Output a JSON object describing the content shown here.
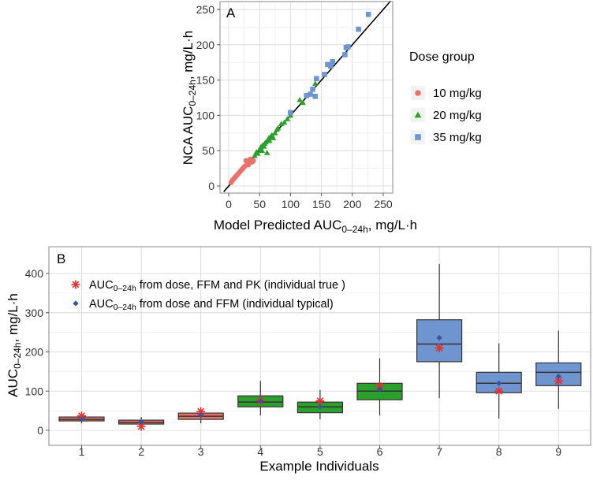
{
  "chart_data": [
    {
      "type": "scatter",
      "panel_label": "A",
      "xlabel_main": "Model Predicted AUC",
      "xlabel_sub": "0–24h",
      "xlabel_unit": ", mg/L·h",
      "ylabel_main": "NCA AUC",
      "ylabel_sub": "0–24h",
      "ylabel_unit": ", mg/L·h",
      "xlim": [
        0,
        250
      ],
      "ylim": [
        0,
        250
      ],
      "xticks": [
        0,
        50,
        100,
        150,
        200,
        250
      ],
      "yticks": [
        0,
        50,
        100,
        150,
        200,
        250
      ],
      "grid": true,
      "identity_line": true,
      "legend_title": "Dose group",
      "legend_position": "right",
      "series": [
        {
          "name": "10 mg/kg",
          "marker": "circle",
          "color": "#e8736b",
          "x": [
            4,
            6,
            8,
            10,
            12,
            14,
            16,
            18,
            20,
            22,
            24,
            26,
            28,
            30,
            32,
            35,
            38,
            40
          ],
          "y": [
            5,
            8,
            10,
            12,
            14,
            16,
            18,
            20,
            22,
            24,
            26,
            28,
            36,
            33,
            30,
            38,
            34,
            36
          ]
        },
        {
          "name": "20 mg/kg",
          "marker": "triangle",
          "color": "#2ca02c",
          "x": [
            42,
            45,
            47,
            50,
            52,
            54,
            55,
            57,
            58,
            60,
            62,
            63,
            65,
            66,
            68,
            70,
            72,
            75,
            78,
            80,
            85,
            90,
            95,
            100,
            115,
            120,
            140
          ],
          "y": [
            43,
            48,
            46,
            52,
            55,
            50,
            58,
            56,
            60,
            62,
            47,
            65,
            68,
            64,
            70,
            72,
            68,
            75,
            80,
            82,
            88,
            90,
            95,
            100,
            122,
            118,
            145
          ]
        },
        {
          "name": "35 mg/kg",
          "marker": "square",
          "color": "#6f95d0",
          "x": [
            100,
            126,
            132,
            136,
            140,
            142,
            155,
            160,
            165,
            168,
            188,
            190,
            193,
            210,
            226
          ],
          "y": [
            104,
            128,
            130,
            137,
            127,
            152,
            158,
            172,
            170,
            176,
            186,
            196,
            197,
            222,
            243
          ]
        }
      ]
    },
    {
      "type": "box",
      "panel_label": "B",
      "xlabel": "Example Individuals",
      "ylabel_main": "AUC",
      "ylabel_sub": "0–24h",
      "ylabel_unit": ", mg/L·h",
      "ylim": [
        0,
        440
      ],
      "yticks": [
        0,
        100,
        200,
        300,
        400
      ],
      "grid": true,
      "legend_position": "top-left",
      "categories": [
        "1",
        "2",
        "3",
        "4",
        "5",
        "6",
        "7",
        "8",
        "9"
      ],
      "box_colors": [
        "#e8736b",
        "#e8736b",
        "#e8736b",
        "#2ca02c",
        "#2ca02c",
        "#2ca02c",
        "#6f95d0",
        "#6f95d0",
        "#6f95d0"
      ],
      "boxes": [
        {
          "min": 18,
          "q1": 24,
          "median": 28,
          "q3": 34,
          "max": 40
        },
        {
          "min": 12,
          "q1": 16,
          "median": 20,
          "q3": 26,
          "max": 34
        },
        {
          "min": 18,
          "q1": 28,
          "median": 36,
          "q3": 44,
          "max": 55
        },
        {
          "min": 38,
          "q1": 60,
          "median": 72,
          "q3": 88,
          "max": 126
        },
        {
          "min": 28,
          "q1": 45,
          "median": 60,
          "q3": 72,
          "max": 103
        },
        {
          "min": 38,
          "q1": 78,
          "median": 100,
          "q3": 120,
          "max": 184
        },
        {
          "min": 82,
          "q1": 175,
          "median": 220,
          "q3": 282,
          "max": 424
        },
        {
          "min": 30,
          "q1": 96,
          "median": 120,
          "q3": 148,
          "max": 222
        },
        {
          "min": 55,
          "q1": 114,
          "median": 148,
          "q3": 172,
          "max": 254
        }
      ],
      "points": [
        {
          "name_main": "AUC",
          "name_sub": "0–24h",
          "name_rest": " from dose, FFM and PK (individual  true )",
          "marker": "asterisk",
          "color": "#e03030",
          "values": [
            37,
            10,
            48,
            75,
            75,
            113,
            210,
            100,
            126
          ]
        },
        {
          "name_main": "AUC",
          "name_sub": "0–24h",
          "name_rest": " from dose and FFM (individual typical)",
          "marker": "diamond",
          "color": "#3a52a0",
          "values": [
            28,
            22,
            38,
            75,
            60,
            105,
            236,
            120,
            138
          ]
        }
      ]
    }
  ]
}
